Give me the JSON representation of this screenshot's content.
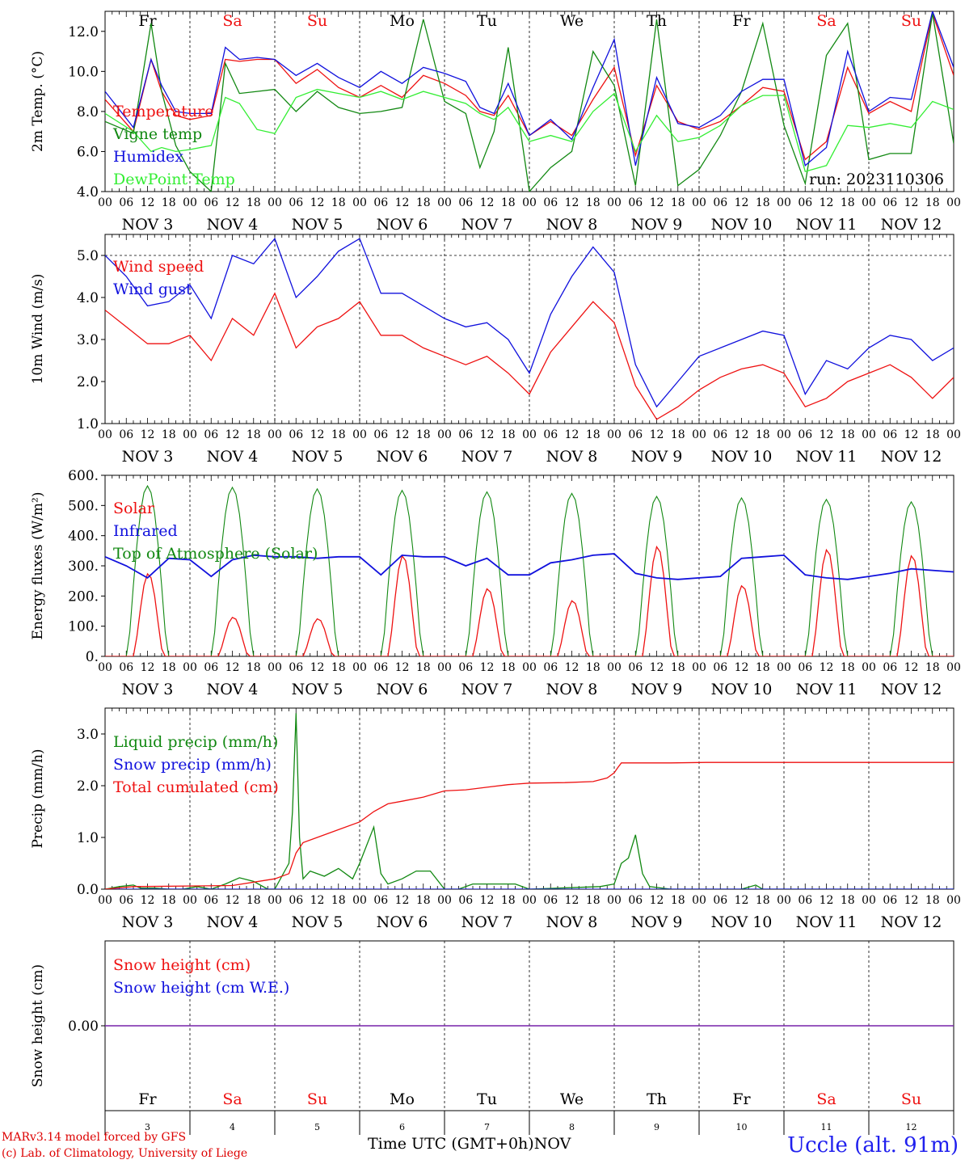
{
  "chart_data": [
    {
      "type": "line",
      "ylabel": "2m Temp. (°C)",
      "ylim": [
        4.0,
        13.0
      ],
      "yticks": [
        "4.0",
        "6.0",
        "8.0",
        "10.0",
        "12.0"
      ],
      "legend": [
        "Temperature",
        "Vigne temp",
        "Humidex",
        "DewPoint Temp"
      ],
      "legend_colors": [
        "#ee1111",
        "#118811",
        "#1111dd",
        "#33ee33"
      ],
      "annotation": "run: 2023110306",
      "day_labels": [
        "Fr",
        "Sa",
        "Su",
        "Mo",
        "Tu",
        "We",
        "Th",
        "Fr",
        "Sa",
        "Su"
      ],
      "day_label_colors": [
        "#000000",
        "#ee1111",
        "#ee1111",
        "#000000",
        "#000000",
        "#000000",
        "#000000",
        "#000000",
        "#ee1111",
        "#ee1111"
      ],
      "x_hours": [
        0,
        8,
        13,
        16,
        20,
        24,
        30,
        34,
        38,
        43,
        48,
        54,
        60,
        66,
        72,
        78,
        84,
        90,
        96,
        102,
        106,
        110,
        114,
        120,
        126,
        132,
        138,
        144,
        150,
        156,
        162,
        168,
        174,
        180,
        186,
        192,
        198,
        204,
        210,
        216,
        222,
        228,
        234,
        240
      ],
      "series": [
        {
          "name": "Temperature",
          "color": "#ee1111",
          "values": [
            8.6,
            7.0,
            10.6,
            9.0,
            7.8,
            7.6,
            7.8,
            10.6,
            10.5,
            10.6,
            10.6,
            9.4,
            10.1,
            9.2,
            8.7,
            9.3,
            8.7,
            9.8,
            9.4,
            8.8,
            8.0,
            7.8,
            8.8,
            6.8,
            7.5,
            6.8,
            8.6,
            10.2,
            5.8,
            9.3,
            7.5,
            7.1,
            7.5,
            8.3,
            9.2,
            9.0,
            5.6,
            6.5,
            10.2,
            7.9,
            8.5,
            8.0,
            12.9,
            9.8
          ]
        },
        {
          "name": "Vigne temp",
          "color": "#118811",
          "values": [
            7.5,
            6.9,
            12.4,
            9.0,
            6.3,
            5.0,
            4.0,
            10.4,
            8.9,
            9.0,
            9.1,
            8.0,
            9.0,
            8.2,
            7.9,
            8.0,
            8.2,
            12.6,
            8.5,
            7.9,
            5.2,
            7.0,
            11.2,
            4.0,
            5.2,
            6.0,
            11.0,
            9.3,
            4.3,
            12.6,
            4.3,
            5.1,
            6.8,
            9.0,
            12.4,
            7.3,
            4.4,
            10.8,
            12.4,
            5.6,
            5.9,
            5.9,
            12.9,
            6.4
          ]
        },
        {
          "name": "Humidex",
          "color": "#1111dd",
          "values": [
            9.0,
            7.2,
            10.6,
            9.3,
            8.0,
            7.9,
            7.9,
            11.2,
            10.6,
            10.7,
            10.6,
            9.8,
            10.4,
            9.7,
            9.2,
            10.0,
            9.4,
            10.2,
            9.9,
            9.5,
            8.2,
            7.9,
            9.4,
            6.8,
            7.6,
            6.6,
            9.2,
            11.6,
            5.3,
            9.7,
            7.4,
            7.2,
            7.8,
            9.0,
            9.6,
            9.6,
            5.3,
            6.2,
            11.0,
            8.0,
            8.7,
            8.6,
            13.0,
            10.2
          ]
        },
        {
          "name": "DewPoint Temp",
          "color": "#33ee33",
          "values": [
            7.9,
            7.0,
            6.0,
            6.2,
            6.0,
            6.1,
            6.3,
            8.7,
            8.4,
            7.1,
            6.9,
            8.7,
            9.1,
            8.9,
            8.7,
            9.0,
            8.6,
            9.0,
            8.7,
            8.4,
            7.9,
            7.6,
            8.2,
            6.5,
            6.8,
            6.5,
            8.0,
            8.9,
            6.0,
            7.8,
            6.5,
            6.7,
            7.3,
            8.3,
            8.8,
            8.8,
            5.0,
            5.3,
            7.3,
            7.2,
            7.4,
            7.2,
            8.5,
            8.1
          ]
        }
      ]
    },
    {
      "type": "line",
      "ylabel": "10m Wind (m/s)",
      "ylim": [
        1.0,
        5.5
      ],
      "yticks": [
        "1.0",
        "2.0",
        "3.0",
        "4.0",
        "5.0"
      ],
      "legend": [
        "Wind speed",
        "Wind gust"
      ],
      "legend_colors": [
        "#ee1111",
        "#1111dd"
      ],
      "x_hours": [
        0,
        6,
        12,
        18,
        24,
        30,
        36,
        42,
        48,
        54,
        60,
        66,
        72,
        78,
        84,
        90,
        96,
        102,
        108,
        114,
        120,
        126,
        132,
        138,
        144,
        150,
        156,
        162,
        168,
        174,
        180,
        186,
        192,
        198,
        204,
        210,
        216,
        222,
        228,
        234,
        240
      ],
      "series": [
        {
          "name": "Wind speed",
          "color": "#ee1111",
          "values": [
            3.7,
            3.3,
            2.9,
            2.9,
            3.1,
            2.5,
            3.5,
            3.1,
            4.1,
            2.8,
            3.3,
            3.5,
            3.9,
            3.1,
            3.1,
            2.8,
            2.6,
            2.4,
            2.6,
            2.2,
            1.7,
            2.7,
            3.3,
            3.9,
            3.4,
            1.9,
            1.1,
            1.4,
            1.8,
            2.1,
            2.3,
            2.4,
            2.2,
            1.4,
            1.6,
            2.0,
            2.2,
            2.4,
            2.1,
            1.6,
            2.1
          ]
        },
        {
          "name": "Wind gust",
          "color": "#1111dd",
          "values": [
            5.0,
            4.5,
            3.8,
            3.9,
            4.3,
            3.5,
            5.0,
            4.8,
            5.4,
            4.0,
            4.5,
            5.1,
            5.4,
            4.1,
            4.1,
            3.8,
            3.5,
            3.3,
            3.4,
            3.0,
            2.2,
            3.6,
            4.5,
            5.2,
            4.6,
            2.4,
            1.4,
            2.0,
            2.6,
            2.8,
            3.0,
            3.2,
            3.1,
            1.7,
            2.5,
            2.3,
            2.8,
            3.1,
            3.0,
            2.5,
            2.8
          ]
        }
      ]
    },
    {
      "type": "line",
      "ylabel": "Energy fluxes (W/m²)",
      "ylim": [
        0,
        600
      ],
      "yticks": [
        "0.",
        "100.",
        "200.",
        "300.",
        "400.",
        "500.",
        "600."
      ],
      "legend": [
        "Solar",
        "Infrared",
        "Top of Atmosphere (Solar)"
      ],
      "legend_colors": [
        "#ee1111",
        "#1111dd",
        "#118811"
      ],
      "daily_peaks_toa": [
        565,
        560,
        555,
        550,
        545,
        540,
        530,
        525,
        520,
        512
      ],
      "daily_peaks_solar": [
        275,
        130,
        125,
        335,
        225,
        185,
        365,
        235,
        355,
        335
      ],
      "series": [
        {
          "name": "Infrared",
          "color": "#1111dd",
          "x_hours": [
            0,
            6,
            12,
            18,
            24,
            30,
            36,
            42,
            48,
            54,
            60,
            66,
            72,
            78,
            84,
            90,
            96,
            102,
            108,
            114,
            120,
            126,
            132,
            138,
            144,
            150,
            156,
            162,
            168,
            174,
            180,
            186,
            192,
            198,
            204,
            210,
            216,
            222,
            228,
            234,
            240
          ],
          "values": [
            330,
            300,
            260,
            325,
            320,
            265,
            320,
            335,
            330,
            330,
            325,
            330,
            330,
            270,
            335,
            330,
            330,
            300,
            325,
            270,
            270,
            310,
            320,
            335,
            340,
            275,
            260,
            255,
            260,
            265,
            325,
            330,
            335,
            270,
            260,
            255,
            265,
            275,
            290,
            285,
            280
          ]
        }
      ]
    },
    {
      "type": "line",
      "ylabel": "Precip (mm/h)",
      "ylim": [
        0,
        3.5
      ],
      "yticks": [
        "0.0",
        "1.0",
        "2.0",
        "3.0"
      ],
      "legend": [
        "Liquid precip (mm/h)",
        "Snow precip (mm/h)",
        "Total cumulated (cm)"
      ],
      "legend_colors": [
        "#118811",
        "#1111dd",
        "#ee1111"
      ],
      "series": [
        {
          "name": "Liquid precip (mm/h)",
          "color": "#118811",
          "x_hours": [
            0,
            4,
            8,
            10,
            14,
            18,
            22,
            26,
            30,
            34,
            38,
            42,
            46,
            48,
            52,
            53,
            54,
            55,
            56,
            58,
            62,
            66,
            70,
            72,
            76,
            78,
            80,
            84,
            88,
            92,
            96,
            100,
            104,
            108,
            112,
            116,
            120,
            140,
            144,
            146,
            148,
            150,
            152,
            154,
            160,
            180,
            184,
            186,
            240
          ],
          "values": [
            0,
            0.05,
            0.08,
            0.02,
            0.02,
            0,
            0,
            0.05,
            0,
            0.1,
            0.22,
            0.15,
            0,
            0,
            0.5,
            1.5,
            3.4,
            1.0,
            0.2,
            0.35,
            0.25,
            0.4,
            0.2,
            0.5,
            1.2,
            0.3,
            0.1,
            0.2,
            0.35,
            0.35,
            0,
            0,
            0.1,
            0.1,
            0.1,
            0.1,
            0,
            0.05,
            0.1,
            0.5,
            0.6,
            1.05,
            0.3,
            0.05,
            0,
            0,
            0.08,
            0,
            0
          ]
        },
        {
          "name": "Snow precip (mm/h)",
          "color": "#1111dd",
          "x_hours": [
            0,
            240
          ],
          "values": [
            0,
            0
          ]
        },
        {
          "name": "Total cumulated (cm)",
          "color": "#ee1111",
          "x_hours": [
            0,
            8,
            36,
            48,
            52,
            54,
            56,
            60,
            66,
            72,
            76,
            80,
            84,
            90,
            96,
            102,
            108,
            114,
            120,
            130,
            138,
            142,
            144,
            145,
            146,
            150,
            160,
            170,
            240
          ],
          "values": [
            0,
            0.05,
            0.07,
            0.2,
            0.3,
            0.7,
            0.9,
            1.0,
            1.15,
            1.3,
            1.5,
            1.65,
            1.7,
            1.78,
            1.9,
            1.92,
            1.97,
            2.02,
            2.05,
            2.06,
            2.08,
            2.15,
            2.25,
            2.35,
            2.44,
            2.44,
            2.44,
            2.45,
            2.45
          ]
        }
      ]
    },
    {
      "type": "line",
      "ylabel": "Snow height (cm)",
      "yticks": [
        "0.00"
      ],
      "legend": [
        "Snow height (cm)",
        "Snow height (cm W.E.)"
      ],
      "legend_colors": [
        "#ee1111",
        "#1111dd"
      ],
      "series": [
        {
          "name": "Snow height (cm)",
          "color": "#ee1111",
          "x_hours": [
            0,
            240
          ],
          "values": [
            0,
            0
          ]
        },
        {
          "name": "Snow height (cm W.E.)",
          "color": "#1111dd",
          "x_hours": [
            0,
            240
          ],
          "values": [
            0,
            0
          ]
        }
      ],
      "day_labels": [
        "Fr",
        "Sa",
        "Su",
        "Mo",
        "Tu",
        "We",
        "Th",
        "Fr",
        "Sa",
        "Su"
      ],
      "day_numbers": [
        "3",
        "4",
        "5",
        "6",
        "7",
        "8",
        "9",
        "10",
        "11",
        "12"
      ]
    }
  ],
  "x_axis": {
    "hour_ticks": [
      "00",
      "06",
      "12",
      "18"
    ],
    "date_labels": [
      "NOV  3",
      "NOV  4",
      "NOV  5",
      "NOV  6",
      "NOV  7",
      "NOV  8",
      "NOV  9",
      "NOV 10",
      "NOV 11",
      "NOV 12"
    ],
    "title": "Time UTC (GMT+0h)",
    "month": "NOV"
  },
  "footer": {
    "credit_line1": "MARv3.14 model forced by GFS",
    "credit_line2": "(c) Lab. of Climatology, University of Liege",
    "station": "Uccle (alt. 91m)"
  }
}
